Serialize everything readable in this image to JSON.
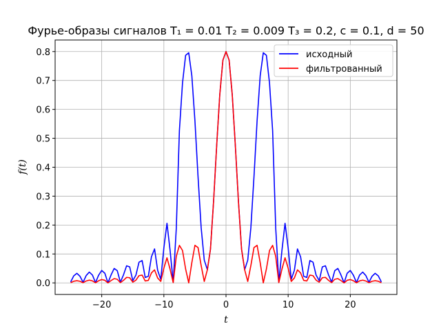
{
  "chart_data": {
    "type": "line",
    "title": "Фурье-образы сигналов T₁ = 0.01 T₂ = 0.009 T₃ = 0.2, c = 0.1, d = 50",
    "xlabel": "t",
    "ylabel": "f(t)",
    "xlim": [
      -27.5,
      27.5
    ],
    "ylim": [
      -0.04,
      0.84
    ],
    "xticks": [
      -20,
      -10,
      0,
      10,
      20
    ],
    "xtick_labels": [
      "−20",
      "−10",
      "0",
      "10",
      "20"
    ],
    "yticks": [
      0.0,
      0.1,
      0.2,
      0.3,
      0.4,
      0.5,
      0.6,
      0.7,
      0.8
    ],
    "ytick_labels": [
      "0.0",
      "0.1",
      "0.2",
      "0.3",
      "0.4",
      "0.5",
      "0.6",
      "0.7",
      "0.8"
    ],
    "grid": true,
    "legend_position": "upper-right",
    "x": [
      -25,
      -24.5,
      -24,
      -23.5,
      -23,
      -22.5,
      -22,
      -21.5,
      -21,
      -20.5,
      -20,
      -19.5,
      -19,
      -18.5,
      -18,
      -17.5,
      -17,
      -16.5,
      -16,
      -15.5,
      -15,
      -14.5,
      -14,
      -13.5,
      -13,
      -12.5,
      -12,
      -11.5,
      -11,
      -10.5,
      -10,
      -9.5,
      -9,
      -8.5,
      -8,
      -7.5,
      -7,
      -6.5,
      -6,
      -5.5,
      -5,
      -4.5,
      -4,
      -3.5,
      -3,
      -2.5,
      -2,
      -1.5,
      -1,
      -0.5,
      0,
      0.5,
      1,
      1.5,
      2,
      2.5,
      3,
      3.5,
      4,
      4.5,
      5,
      5.5,
      6,
      6.5,
      7,
      7.5,
      8,
      8.5,
      9,
      9.5,
      10,
      10.5,
      11,
      11.5,
      12,
      12.5,
      13,
      13.5,
      14,
      14.5,
      15,
      15.5,
      16,
      16.5,
      17,
      17.5,
      18,
      18.5,
      19,
      19.5,
      20,
      20.5,
      21,
      21.5,
      22,
      22.5,
      23,
      23.5,
      24,
      24.5,
      25
    ],
    "series": [
      {
        "name": "исходный",
        "color": "#0000ff",
        "values": [
          0.0032,
          0.0243,
          0.0331,
          0.0229,
          0.0021,
          0.0254,
          0.0374,
          0.0273,
          0.0011,
          0.0265,
          0.0429,
          0.0333,
          0.0001,
          0.0273,
          0.0499,
          0.0422,
          0.0026,
          0.0276,
          0.0591,
          0.0554,
          0.0077,
          0.0267,
          0.0717,
          0.0773,
          0.0188,
          0.0229,
          0.0903,
          0.1174,
          0.0434,
          0.0121,
          0.1213,
          0.206,
          0.1122,
          0.0018,
          0.1888,
          0.527,
          0.6914,
          0.7869,
          0.7958,
          0.7163,
          0.5599,
          0.3667,
          0.1908,
          0.0788,
          0.0456,
          0.1169,
          0.282,
          0.4754,
          0.6516,
          0.7703,
          0.8,
          0.7703,
          0.6516,
          0.4754,
          0.282,
          0.1169,
          0.0456,
          0.0788,
          0.1908,
          0.3667,
          0.5599,
          0.7163,
          0.7958,
          0.7869,
          0.6914,
          0.527,
          0.1888,
          0.0018,
          0.1122,
          0.206,
          0.1213,
          0.0121,
          0.0434,
          0.1174,
          0.0903,
          0.0229,
          0.0188,
          0.0773,
          0.0717,
          0.0267,
          0.0077,
          0.0554,
          0.0591,
          0.0276,
          0.0026,
          0.0422,
          0.0499,
          0.0273,
          0.0001,
          0.0333,
          0.0429,
          0.0265,
          0.0011,
          0.0273,
          0.0374,
          0.0254,
          0.0021,
          0.0229,
          0.0331,
          0.0243,
          0.0032
        ]
      },
      {
        "name": "фильтрованный",
        "color": "#ff0000",
        "values": [
          0.0005,
          0.0058,
          0.0075,
          0.0056,
          0.0006,
          0.0066,
          0.0095,
          0.0069,
          0.0003,
          0.0073,
          0.0116,
          0.009,
          0.0,
          0.008,
          0.0148,
          0.0125,
          0.0008,
          0.0088,
          0.019,
          0.0178,
          0.0026,
          0.0094,
          0.025,
          0.027,
          0.0066,
          0.0088,
          0.0345,
          0.045,
          0.0168,
          0.0052,
          0.051,
          0.0868,
          0.0473,
          0.0009,
          0.0918,
          0.1298,
          0.112,
          0.048,
          0.0,
          0.07,
          0.13,
          0.122,
          0.06,
          0.005,
          0.0455,
          0.1168,
          0.2818,
          0.4752,
          0.6515,
          0.7703,
          0.8,
          0.7703,
          0.6515,
          0.4752,
          0.2818,
          0.1168,
          0.0455,
          0.005,
          0.06,
          0.122,
          0.13,
          0.07,
          0.0,
          0.048,
          0.112,
          0.1298,
          0.0918,
          0.0009,
          0.0473,
          0.0868,
          0.051,
          0.0052,
          0.0168,
          0.045,
          0.0345,
          0.0088,
          0.0066,
          0.027,
          0.025,
          0.0094,
          0.0026,
          0.0178,
          0.019,
          0.0088,
          0.0008,
          0.0125,
          0.0148,
          0.008,
          0.0,
          0.009,
          0.0116,
          0.0073,
          0.0003,
          0.0069,
          0.0095,
          0.0066,
          0.0006,
          0.0056,
          0.0075,
          0.0058,
          0.0005
        ]
      }
    ]
  }
}
